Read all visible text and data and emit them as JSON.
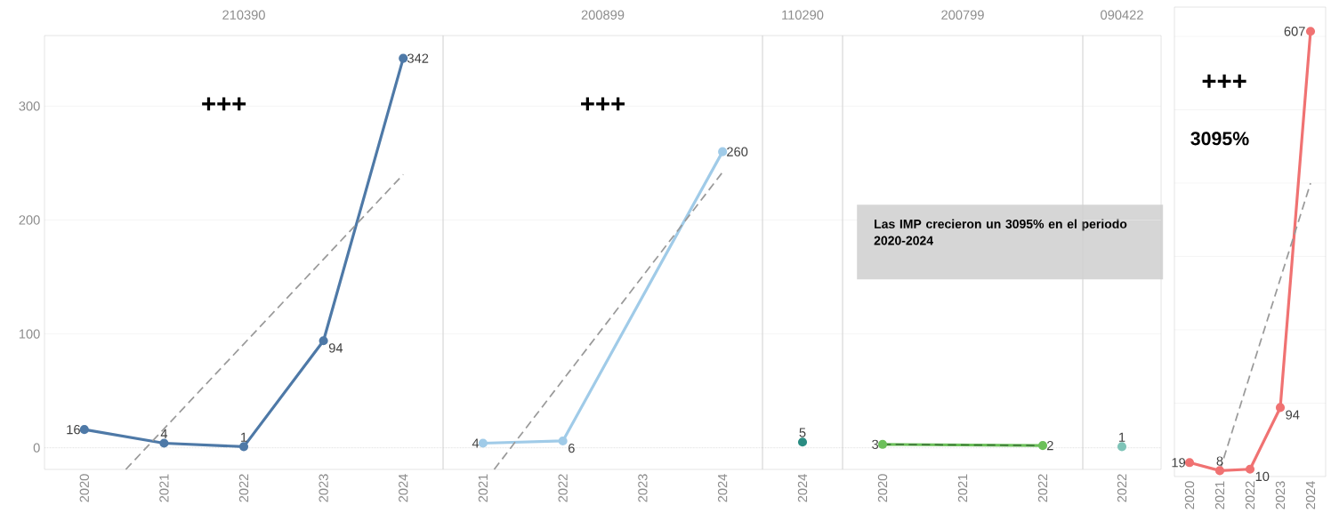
{
  "chart_data": [
    {
      "type": "line",
      "title": "210390",
      "x": [
        2020,
        2021,
        2022,
        2023,
        2024
      ],
      "xlim": [
        2019.5,
        2024.5
      ],
      "xticks": [
        2020,
        2021,
        2022,
        2023,
        2024
      ],
      "ylim": [
        -19,
        362
      ],
      "yticks": [
        0,
        100,
        200,
        300
      ],
      "grid": "y",
      "marker": "circle",
      "line_style": "solid",
      "annotations": [
        "+++"
      ],
      "ref_lines": [
        {
          "axis": "y",
          "value": 0,
          "line_style": "dotted",
          "color": "#bbbbbb"
        }
      ],
      "series": [
        {
          "color": "#4e79a7",
          "values": [
            16,
            4,
            1,
            94,
            342
          ],
          "value_labels": [
            "16",
            "4",
            "1",
            "94",
            "342"
          ]
        },
        {
          "color": "#9a9a9a",
          "x": [
            2020.52,
            2024
          ],
          "values": [
            -19,
            240
          ],
          "marker": "none",
          "line_style": "dashed"
        }
      ]
    },
    {
      "type": "line",
      "title": "200899",
      "x": [
        2021,
        2022,
        2024
      ],
      "xlim": [
        2020.5,
        2024.5
      ],
      "xticks": [
        2021,
        2022,
        2023,
        2024
      ],
      "ylim": [
        -19,
        362
      ],
      "yticks": [
        0,
        100,
        200,
        300
      ],
      "tick_labels": "x",
      "grid": "y",
      "marker": "circle",
      "line_style": "solid",
      "annotations": [
        "+++"
      ],
      "ref_lines": [
        {
          "axis": "y",
          "value": 0,
          "line_style": "dotted",
          "color": "#bbbbbb"
        }
      ],
      "series": [
        {
          "color": "#a0cbe8",
          "values": [
            4,
            6,
            260
          ],
          "value_labels": [
            "4",
            "6",
            "260"
          ]
        },
        {
          "color": "#9a9a9a",
          "x": [
            2021.14,
            2024
          ],
          "values": [
            -19,
            242
          ],
          "marker": "none",
          "line_style": "dashed"
        }
      ]
    },
    {
      "type": "line",
      "title": "110290",
      "categories": [
        "2024"
      ],
      "ylim": [
        -19,
        362
      ],
      "yticks": [
        0,
        100,
        200,
        300
      ],
      "tick_labels": "x",
      "grid": "y",
      "marker": "circle",
      "line_style": "solid",
      "ref_lines": [
        {
          "axis": "y",
          "value": 0,
          "line_style": "dotted",
          "color": "#bbbbbb"
        }
      ],
      "series": [
        {
          "color": "#2a8c82",
          "values": [
            5
          ],
          "value_labels": [
            "5"
          ]
        }
      ]
    },
    {
      "type": "line",
      "title": "200799",
      "x": [
        2020,
        2022
      ],
      "xlim": [
        2019.5,
        2022.5
      ],
      "xticks": [
        2020,
        2021,
        2022
      ],
      "ylim": [
        -19,
        362
      ],
      "yticks": [
        0,
        100,
        200,
        300
      ],
      "tick_labels": "x",
      "grid": "y",
      "marker": "circle",
      "line_style": "solid",
      "annotations": [
        "Las IMP crecieron un 3095% en el periodo 2020-2024"
      ],
      "ref_lines": [
        {
          "axis": "y",
          "value": 0,
          "line_style": "dotted",
          "color": "#bbbbbb"
        }
      ],
      "series": [
        {
          "color": "#6cc05a",
          "values": [
            3,
            2
          ],
          "value_labels": [
            "3",
            "2"
          ]
        },
        {
          "color": "#3f7a3a",
          "values": [
            3,
            2
          ],
          "marker": "none",
          "line_style": "dashed"
        }
      ]
    },
    {
      "type": "line",
      "title": "090422",
      "categories": [
        "2022"
      ],
      "ylim": [
        -19,
        362
      ],
      "yticks": [
        0,
        100,
        200,
        300
      ],
      "tick_labels": "x",
      "grid": "y",
      "marker": "circle",
      "line_style": "solid",
      "ref_lines": [
        {
          "axis": "y",
          "value": 0,
          "line_style": "dotted",
          "color": "#bbbbbb"
        }
      ],
      "series": [
        {
          "color": "#7fc4b8",
          "values": [
            1
          ],
          "value_labels": [
            "1"
          ]
        }
      ]
    },
    {
      "type": "line",
      "x": [
        2020,
        2021,
        2022,
        2023,
        2024
      ],
      "xlim": [
        2019.5,
        2024.5
      ],
      "xticks": [
        2020,
        2021,
        2022,
        2023,
        2024
      ],
      "ylim": [
        0,
        640
      ],
      "yticks": [
        {
          "value": 100,
          "label": null
        },
        {
          "value": 200,
          "label": null
        },
        {
          "value": 300,
          "label": null
        },
        {
          "value": 400,
          "label": null
        },
        {
          "value": 500,
          "label": null
        },
        {
          "value": 600,
          "label": null
        }
      ],
      "tick_labels": "x",
      "grid": "y",
      "marker": "circle",
      "line_style": "solid",
      "annotations": [
        "+++",
        "3095%"
      ],
      "series": [
        {
          "color": "#f07272",
          "values": [
            19,
            8,
            10,
            94,
            607
          ],
          "value_labels": [
            "19",
            "8",
            "10",
            "94",
            "607"
          ]
        },
        {
          "color": "#9a9a9a",
          "x": [
            2021,
            2024
          ],
          "values": [
            8,
            400
          ],
          "marker": "none",
          "line_style": "dashed"
        }
      ]
    }
  ]
}
